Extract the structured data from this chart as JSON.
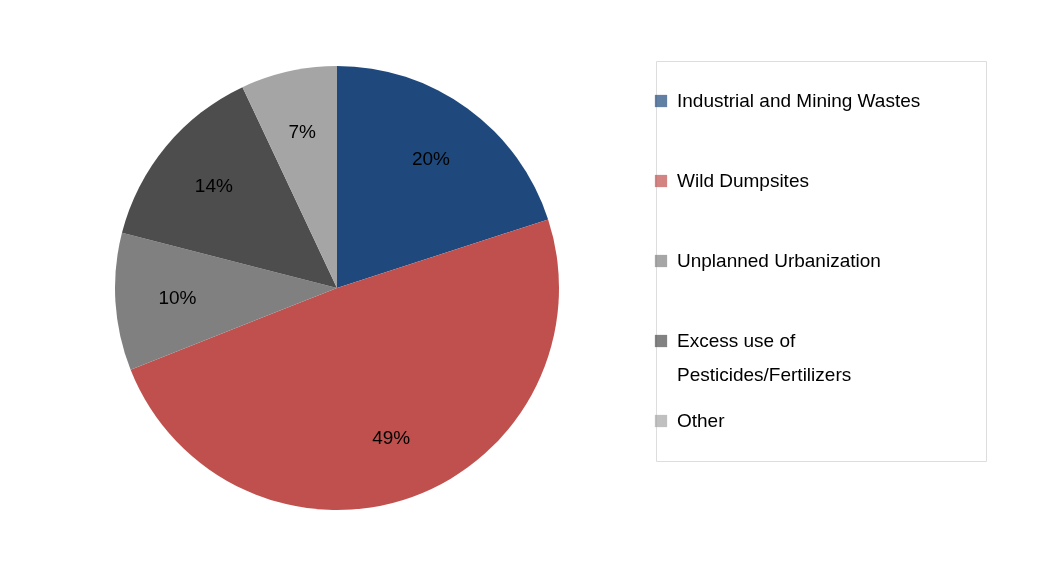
{
  "chart_data": {
    "type": "pie",
    "categories": [
      "Industrial and Mining Wastes",
      "Wild Dumpsites",
      "Unplanned Urbanization",
      "Excess use of Pesticides/Fertilizers",
      "Other"
    ],
    "values": [
      20,
      49,
      10,
      14,
      7
    ],
    "colors": [
      "#1f497d",
      "#c0504d",
      "#808080",
      "#4d4d4d",
      "#a5a5a5"
    ],
    "value_labels": [
      "20%",
      "49%",
      "10%",
      "14%",
      "7%"
    ],
    "legend": "right"
  }
}
